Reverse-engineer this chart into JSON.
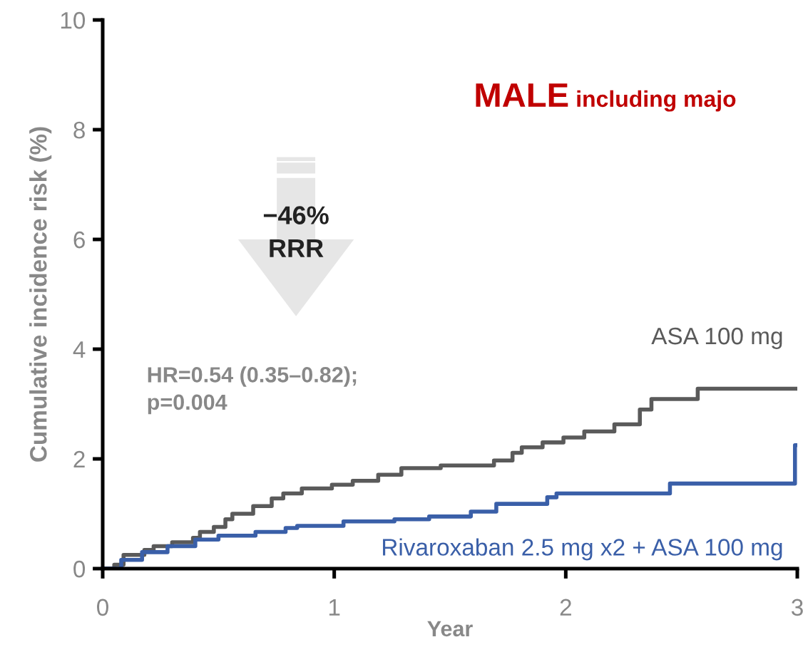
{
  "chart_data": {
    "type": "step",
    "title": "MALE including majo",
    "xlabel": "Year",
    "ylabel": "Cumulative incidence risk (%)",
    "xlim": [
      0,
      3
    ],
    "ylim": [
      0,
      10
    ],
    "xticks": [
      0,
      1,
      2,
      3
    ],
    "yticks": [
      0,
      2,
      4,
      6,
      8,
      10
    ],
    "grid": false,
    "legend": false,
    "annotations": [
      "−46%",
      "RRR",
      "HR=0.54 (0.35–0.82);",
      "p=0.004"
    ],
    "series": [
      {
        "name": "ASA 100 mg",
        "color": "#5a5a5a",
        "x": [
          0,
          0.05,
          0.09,
          0.18,
          0.22,
          0.3,
          0.39,
          0.42,
          0.48,
          0.53,
          0.56,
          0.65,
          0.73,
          0.78,
          0.86,
          0.99,
          1.08,
          1.19,
          1.29,
          1.46,
          1.69,
          1.77,
          1.81,
          1.9,
          1.99,
          2.08,
          2.21,
          2.32,
          2.37,
          2.57,
          3.0
        ],
        "values": [
          0,
          0.07,
          0.25,
          0.34,
          0.41,
          0.48,
          0.56,
          0.67,
          0.76,
          0.9,
          1.0,
          1.14,
          1.28,
          1.37,
          1.46,
          1.53,
          1.6,
          1.71,
          1.83,
          1.88,
          1.97,
          2.11,
          2.21,
          2.3,
          2.39,
          2.5,
          2.63,
          2.9,
          3.09,
          3.28,
          3.28
        ]
      },
      {
        "name": "Rivaroxaban 2.5 mg x2 + ASA 100 mg",
        "color": "#3a5fa8",
        "x": [
          0,
          0.08,
          0.17,
          0.28,
          0.4,
          0.5,
          0.66,
          0.79,
          0.84,
          1.04,
          1.26,
          1.41,
          1.59,
          1.7,
          1.92,
          1.96,
          2.45,
          2.99,
          3.0
        ],
        "values": [
          0,
          0.16,
          0.3,
          0.41,
          0.53,
          0.6,
          0.67,
          0.74,
          0.78,
          0.86,
          0.9,
          0.95,
          1.04,
          1.18,
          1.3,
          1.37,
          1.55,
          2.25,
          2.25
        ]
      }
    ]
  }
}
